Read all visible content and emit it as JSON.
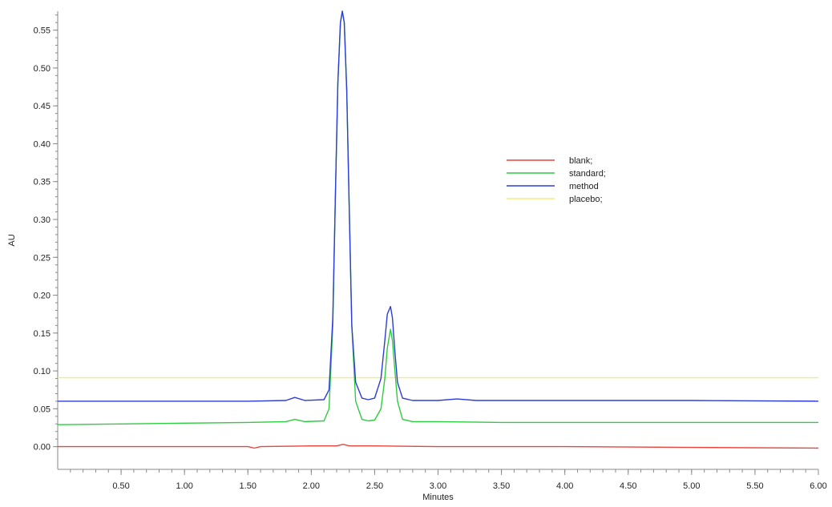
{
  "chart_data": {
    "type": "line",
    "title": "",
    "xlabel": "Minutes",
    "ylabel": "AU",
    "xlim": [
      0.0,
      6.0
    ],
    "ylim": [
      -0.03,
      0.575
    ],
    "xticks": [
      0.5,
      1.0,
      1.5,
      2.0,
      2.5,
      3.0,
      3.5,
      4.0,
      4.5,
      5.0,
      5.5,
      6.0
    ],
    "xtick_labels": [
      "0.50",
      "1.00",
      "1.50",
      "2.00",
      "2.50",
      "3.00",
      "3.50",
      "4.00",
      "4.50",
      "5.00",
      "5.50",
      "6.00"
    ],
    "yticks": [
      0.0,
      0.05,
      0.1,
      0.15,
      0.2,
      0.25,
      0.3,
      0.35,
      0.4,
      0.45,
      0.5,
      0.55
    ],
    "ytick_labels": [
      "0.00",
      "0.05",
      "0.10",
      "0.15",
      "0.20",
      "0.25",
      "0.30",
      "0.35",
      "0.40",
      "0.45",
      "0.50",
      "0.55"
    ],
    "grid": false,
    "legend_position": "center-right",
    "series": [
      {
        "name": "blank;",
        "color": "#e8453c",
        "x": [
          0.0,
          1.0,
          1.5,
          1.55,
          1.6,
          2.0,
          2.2,
          2.25,
          2.3,
          2.5,
          3.0,
          4.0,
          5.0,
          6.0
        ],
        "y": [
          0.0,
          0.0,
          0.0,
          -0.002,
          0.0,
          0.001,
          0.001,
          0.003,
          0.001,
          0.001,
          0.0,
          0.0,
          -0.001,
          -0.002
        ]
      },
      {
        "name": "standard;",
        "color": "#2ecc40",
        "x": [
          0.0,
          0.5,
          1.0,
          1.5,
          1.8,
          1.87,
          1.95,
          2.1,
          2.14,
          2.17,
          2.19,
          2.21,
          2.23,
          2.245,
          2.26,
          2.28,
          2.3,
          2.32,
          2.35,
          2.4,
          2.45,
          2.5,
          2.55,
          2.58,
          2.6,
          2.625,
          2.64,
          2.66,
          2.68,
          2.72,
          2.8,
          3.0,
          3.5,
          4.0,
          5.0,
          6.0
        ],
        "y": [
          0.029,
          0.03,
          0.031,
          0.032,
          0.033,
          0.036,
          0.033,
          0.034,
          0.05,
          0.16,
          0.33,
          0.48,
          0.56,
          0.575,
          0.56,
          0.47,
          0.31,
          0.16,
          0.06,
          0.036,
          0.034,
          0.035,
          0.05,
          0.09,
          0.13,
          0.155,
          0.14,
          0.1,
          0.06,
          0.036,
          0.033,
          0.033,
          0.032,
          0.032,
          0.032,
          0.032
        ]
      },
      {
        "name": "method",
        "color": "#2d3dd8",
        "x": [
          0.0,
          0.5,
          1.0,
          1.5,
          1.8,
          1.87,
          1.95,
          2.1,
          2.14,
          2.17,
          2.19,
          2.21,
          2.23,
          2.245,
          2.26,
          2.28,
          2.3,
          2.32,
          2.35,
          2.4,
          2.45,
          2.5,
          2.55,
          2.58,
          2.6,
          2.625,
          2.64,
          2.66,
          2.68,
          2.72,
          2.8,
          3.0,
          3.15,
          3.3,
          4.0,
          5.0,
          6.0
        ],
        "y": [
          0.06,
          0.06,
          0.06,
          0.06,
          0.061,
          0.065,
          0.061,
          0.062,
          0.075,
          0.17,
          0.33,
          0.48,
          0.56,
          0.575,
          0.56,
          0.47,
          0.31,
          0.16,
          0.085,
          0.064,
          0.062,
          0.064,
          0.09,
          0.14,
          0.175,
          0.185,
          0.17,
          0.125,
          0.085,
          0.064,
          0.061,
          0.061,
          0.063,
          0.061,
          0.061,
          0.061,
          0.06
        ]
      },
      {
        "name": "placebo;",
        "color": "#f2ee7a",
        "x": [
          0.0,
          6.0
        ],
        "y": [
          0.091,
          0.091
        ]
      }
    ]
  }
}
